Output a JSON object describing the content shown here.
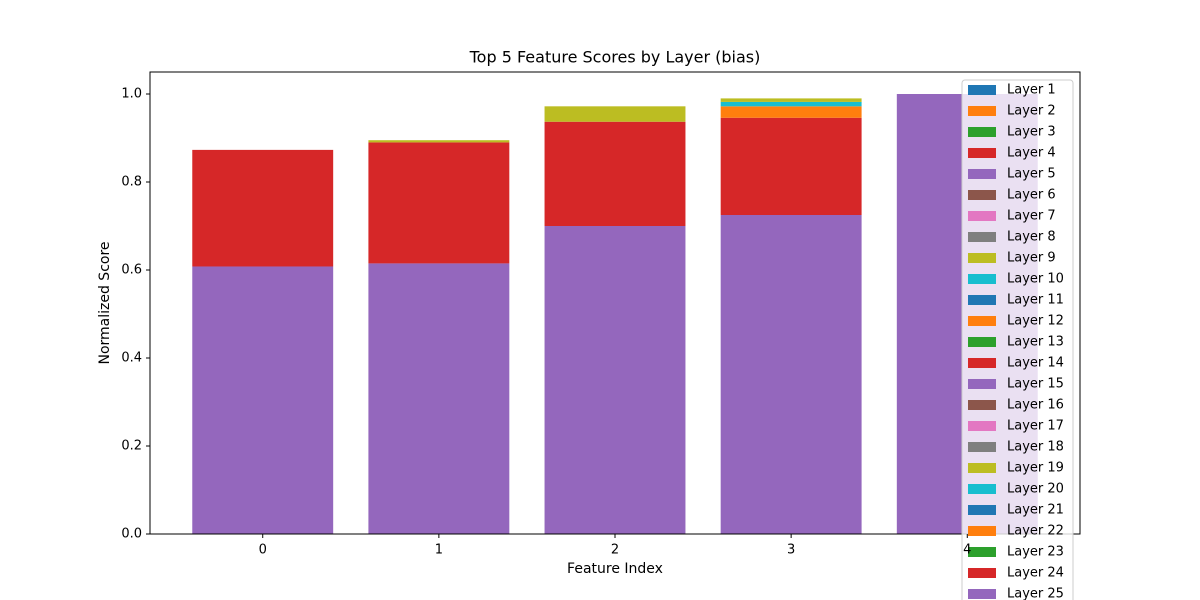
{
  "chart_data": {
    "type": "bar",
    "stacked": true,
    "title": "Top 5 Feature Scores by Layer (bias)",
    "xlabel": "Feature Index",
    "ylabel": "Normalized Score",
    "x": [
      0,
      1,
      2,
      3,
      4
    ],
    "xlim": [
      -0.64,
      4.64
    ],
    "xticks": [
      0,
      1,
      2,
      3,
      4
    ],
    "ylim": [
      0,
      1.05
    ],
    "yticks": [
      {
        "value": 0,
        "label": "0.0"
      },
      {
        "value": 0.2,
        "label": "0.2"
      },
      {
        "value": 0.4,
        "label": "0.4"
      },
      {
        "value": 0.6,
        "label": "0.6"
      },
      {
        "value": 0.8,
        "label": "0.8"
      },
      {
        "value": 1.0,
        "label": "1.0"
      }
    ],
    "legend": "upper right",
    "series": [
      {
        "name": "Layer 1",
        "color": "#1f77b4",
        "values": [
          0,
          0,
          0,
          0,
          0
        ]
      },
      {
        "name": "Layer 2",
        "color": "#ff7f0e",
        "values": [
          0,
          0,
          0,
          0,
          0
        ]
      },
      {
        "name": "Layer 3",
        "color": "#2ca02c",
        "values": [
          0,
          0,
          0,
          0,
          0
        ]
      },
      {
        "name": "Layer 4",
        "color": "#d62728",
        "values": [
          0,
          0,
          0,
          0,
          0
        ]
      },
      {
        "name": "Layer 5",
        "color": "#9467bd",
        "values": [
          0,
          0,
          0,
          0,
          0
        ]
      },
      {
        "name": "Layer 6",
        "color": "#8c564b",
        "values": [
          0,
          0,
          0,
          0,
          0
        ]
      },
      {
        "name": "Layer 7",
        "color": "#e377c2",
        "values": [
          0,
          0,
          0,
          0,
          0
        ]
      },
      {
        "name": "Layer 8",
        "color": "#7f7f7f",
        "values": [
          0,
          0,
          0,
          0,
          0
        ]
      },
      {
        "name": "Layer 9",
        "color": "#bcbd22",
        "values": [
          0,
          0,
          0,
          0,
          0
        ]
      },
      {
        "name": "Layer 10",
        "color": "#17becf",
        "values": [
          0,
          0,
          0,
          0,
          0
        ]
      },
      {
        "name": "Layer 11",
        "color": "#1f77b4",
        "values": [
          0,
          0,
          0,
          0,
          0
        ]
      },
      {
        "name": "Layer 12",
        "color": "#ff7f0e",
        "values": [
          0,
          0,
          0,
          0,
          0
        ]
      },
      {
        "name": "Layer 13",
        "color": "#2ca02c",
        "values": [
          0,
          0,
          0,
          0,
          0
        ]
      },
      {
        "name": "Layer 14",
        "color": "#d62728",
        "values": [
          0,
          0,
          0,
          0,
          0
        ]
      },
      {
        "name": "Layer 15",
        "color": "#9467bd",
        "values": [
          0,
          0,
          0,
          0,
          0
        ]
      },
      {
        "name": "Layer 16",
        "color": "#8c564b",
        "values": [
          0,
          0,
          0,
          0,
          0
        ]
      },
      {
        "name": "Layer 17",
        "color": "#e377c2",
        "values": [
          0,
          0,
          0,
          0,
          0
        ]
      },
      {
        "name": "Layer 18",
        "color": "#7f7f7f",
        "values": [
          0,
          0,
          0,
          0,
          0
        ]
      },
      {
        "name": "Layer 19",
        "color": "#bcbd22",
        "values": [
          0,
          0.005,
          0.035,
          0.008,
          0
        ]
      },
      {
        "name": "Layer 20",
        "color": "#17becf",
        "values": [
          0,
          0,
          0,
          0.01,
          0
        ]
      },
      {
        "name": "Layer 21",
        "color": "#1f77b4",
        "values": [
          0,
          0,
          0,
          0,
          0
        ]
      },
      {
        "name": "Layer 22",
        "color": "#ff7f0e",
        "values": [
          0,
          0,
          0,
          0.026,
          0
        ]
      },
      {
        "name": "Layer 23",
        "color": "#2ca02c",
        "values": [
          0,
          0,
          0,
          0,
          0
        ]
      },
      {
        "name": "Layer 24",
        "color": "#d62728",
        "values": [
          0.265,
          0.275,
          0.237,
          0.221,
          0
        ]
      },
      {
        "name": "Layer 25",
        "color": "#9467bd",
        "values": [
          0.608,
          0.615,
          0.7,
          0.725,
          1.0
        ]
      }
    ]
  }
}
